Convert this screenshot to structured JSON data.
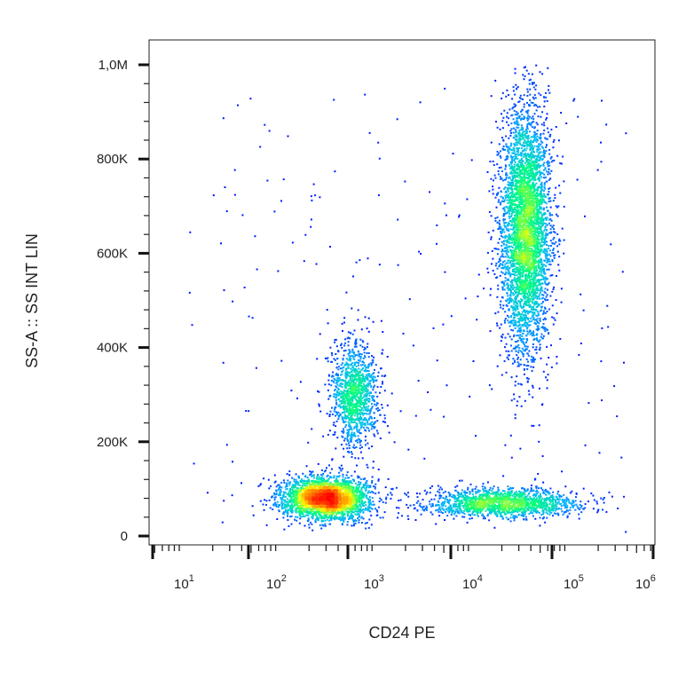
{
  "chart_data": {
    "type": "scatter",
    "subtype": "flow-cytometry-density-dot-plot",
    "title": "",
    "xlabel": "CD24 PE",
    "ylabel": "SS-A :: SS INT LIN",
    "x_scale": "log",
    "xlim": [
      5,
      1000000
    ],
    "ylim": [
      0,
      1050000
    ],
    "x_ticks": [
      {
        "value": 10,
        "base": "10",
        "exp": "1"
      },
      {
        "value": 100,
        "base": "10",
        "exp": "2"
      },
      {
        "value": 1000,
        "base": "10",
        "exp": "3"
      },
      {
        "value": 10000,
        "base": "10",
        "exp": "4"
      },
      {
        "value": 100000,
        "base": "10",
        "exp": "5"
      },
      {
        "value": 1000000,
        "base": "10",
        "exp": "6"
      }
    ],
    "y_ticks": [
      {
        "value": 0,
        "label": "0"
      },
      {
        "value": 200000,
        "label": "200K"
      },
      {
        "value": 400000,
        "label": "400K"
      },
      {
        "value": 600000,
        "label": "600K"
      },
      {
        "value": 800000,
        "label": "800K"
      },
      {
        "value": 1000000,
        "label": "1,0M"
      }
    ],
    "grid": false,
    "legend": "none",
    "density_colormap": [
      "#0000ff",
      "#00b4ff",
      "#00ff80",
      "#ffff00",
      "#ff8000",
      "#ff0000"
    ],
    "populations": [
      {
        "center_x": 300,
        "center_y": 80000,
        "spread_log_x": 0.22,
        "spread_y": 22000,
        "count": 3000
      },
      {
        "center_x": 600,
        "center_y": 300000,
        "spread_log_x": 0.12,
        "spread_y": 55000,
        "count": 1200
      },
      {
        "center_x": 35000,
        "center_y": 650000,
        "spread_log_x": 0.13,
        "spread_y": 130000,
        "count": 4200
      },
      {
        "center_x": 20000,
        "center_y": 70000,
        "spread_log_x": 0.4,
        "spread_y": 15000,
        "count": 1600
      }
    ]
  }
}
